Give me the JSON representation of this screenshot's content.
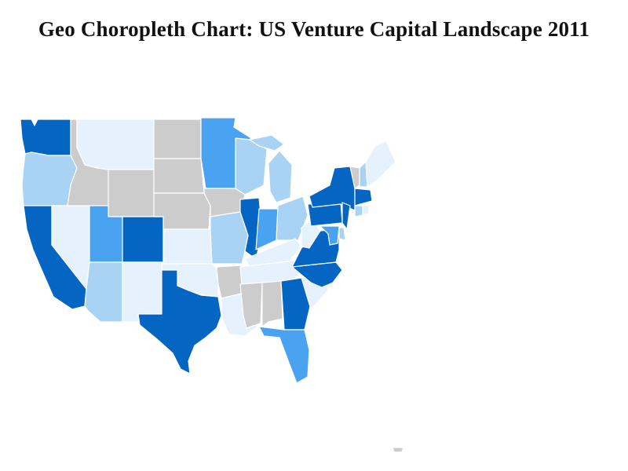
{
  "title": "Geo Choropleth Chart: US Venture Capital Landscape 2011",
  "colors": {
    "no_data": "#cccccc",
    "level_1": "#e5f2fd",
    "level_2": "#a9d3f5",
    "level_3": "#4aa3f0",
    "level_4": "#0565c2"
  },
  "chart_data": {
    "type": "choropleth",
    "region": "US states",
    "levels": {
      "WA": 4,
      "OR": 2,
      "CA": 4,
      "NV": 1,
      "ID": 0,
      "MT": 1,
      "WY": 0,
      "UT": 3,
      "AZ": 2,
      "CO": 4,
      "NM": 1,
      "ND": 0,
      "SD": 0,
      "NE": 0,
      "KS": 1,
      "OK": 1,
      "TX": 4,
      "MN": 3,
      "IA": 0,
      "MO": 2,
      "AR": 0,
      "LA": 1,
      "WI": 2,
      "IL": 4,
      "MI": 2,
      "IN": 3,
      "OH": 2,
      "KY": 1,
      "TN": 1,
      "MS": 0,
      "AL": 0,
      "GA": 4,
      "FL": 3,
      "SC": 1,
      "NC": 4,
      "VA": 4,
      "WV": 1,
      "PA": 4,
      "NY": 4,
      "NJ": 4,
      "DE": 2,
      "MD": 3,
      "VT": 0,
      "NH": 2,
      "ME": 1,
      "MA": 4,
      "CT": 2,
      "RI": 1,
      "AK": 0
    }
  }
}
